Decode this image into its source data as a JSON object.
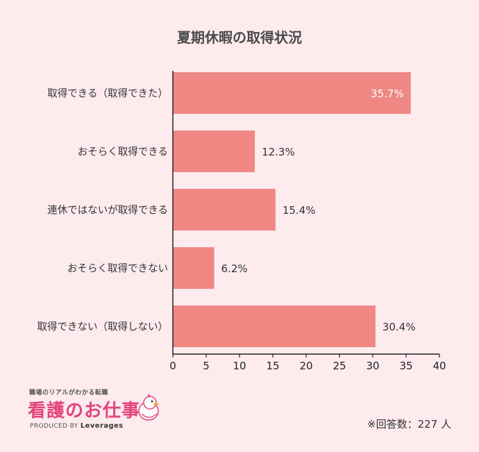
{
  "chart_data": {
    "type": "bar",
    "orientation": "horizontal",
    "title": "夏期休暇の取得状況",
    "categories": [
      "取得できる（取得できた）",
      "おそらく取得できる",
      "連休ではないが取得できる",
      "おそらく取得できない",
      "取得できない（取得しない）"
    ],
    "values": [
      35.7,
      12.3,
      15.4,
      6.2,
      30.4
    ],
    "value_labels": [
      "35.7%",
      "12.3%",
      "15.4%",
      "6.2%",
      "30.4%"
    ],
    "xlim": [
      0,
      40
    ],
    "xticks": [
      "0",
      "5",
      "10",
      "15",
      "20",
      "25",
      "30",
      "35",
      "40"
    ],
    "bar_color": "#ef8882",
    "grid": false,
    "xlabel": "",
    "ylabel": ""
  },
  "logo": {
    "tagline": "職場のリアルがわかる転職",
    "name": "看護のお仕事",
    "produced_prefix": "PRODUCED BY",
    "produced_brand": "Leverages"
  },
  "footnote": "※回答数：227 人"
}
